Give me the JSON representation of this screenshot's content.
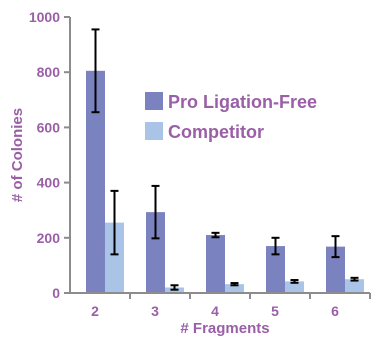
{
  "chart_data": {
    "type": "bar",
    "title": "",
    "xlabel": "# Fragments",
    "ylabel": "# of Colonies",
    "categories": [
      "2",
      "3",
      "4",
      "5",
      "6"
    ],
    "ylim": [
      0,
      1000
    ],
    "yticks": [
      0,
      200,
      400,
      600,
      800,
      1000
    ],
    "grid": false,
    "legend_position": "right",
    "series": [
      {
        "name": "Pro Ligation-Free",
        "values": [
          805,
          293,
          210,
          170,
          168
        ],
        "error": [
          150,
          95,
          8,
          30,
          38
        ],
        "color": "#7b82c0"
      },
      {
        "name": "Competitor",
        "values": [
          255,
          20,
          32,
          42,
          50
        ],
        "error": [
          115,
          8,
          4,
          5,
          5
        ],
        "color": "#a9c4e6"
      }
    ],
    "colors": {
      "axis": "#8c8c8c",
      "text": "#9a5fa6",
      "error_bar": "#000000"
    }
  }
}
